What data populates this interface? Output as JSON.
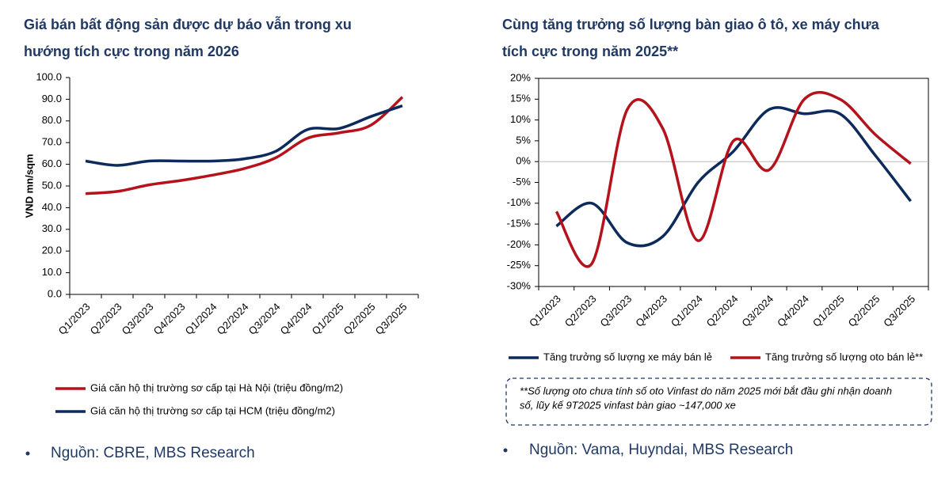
{
  "chart_data": [
    {
      "type": "line",
      "title": [
        "Giá bán bất động sản được dự báo vẫn trong xu",
        "hướng tích cực trong năm 2026"
      ],
      "y_label": "VND mn/sqm",
      "categories": [
        "Q1/2023",
        "Q2/2023",
        "Q3/2023",
        "Q4/2023",
        "Q1/2024",
        "Q2/2024",
        "Q3/2024",
        "Q4/2024",
        "Q1/2025",
        "Q2/2025",
        "Q3/2025"
      ],
      "series": [
        {
          "name": "Giá căn hộ thị trường sơ cấp tại Hà Nội (triệu đồng/m2)",
          "color": "#b5121b",
          "values": [
            46.5,
            47.5,
            50.5,
            52.5,
            55,
            58,
            63,
            72,
            74.5,
            78,
            91
          ]
        },
        {
          "name": "Giá căn hộ thị trường sơ cấp tại HCM (triệu đồng/m2)",
          "color": "#0d2a5c",
          "values": [
            61.5,
            59.5,
            61.5,
            61.5,
            61.5,
            62.5,
            66,
            76,
            76.5,
            82,
            87
          ]
        }
      ],
      "ylim": [
        0,
        100
      ],
      "yticks": [
        {
          "value": 0,
          "label": "0.0"
        },
        {
          "value": 10,
          "label": "10.0"
        },
        {
          "value": 20,
          "label": "20.0"
        },
        {
          "value": 30,
          "label": "30.0"
        },
        {
          "value": 40,
          "label": "40.0"
        },
        {
          "value": 50,
          "label": "50.0"
        },
        {
          "value": 60,
          "label": "60.0"
        },
        {
          "value": 70,
          "label": "70.0"
        },
        {
          "value": 80,
          "label": "80.0"
        },
        {
          "value": 90,
          "label": "90.0"
        },
        {
          "value": 100,
          "label": "100.0"
        }
      ],
      "frame": false,
      "zero_line": false,
      "source": "Nguồn: CBRE, MBS Research"
    },
    {
      "type": "line",
      "title": [
        "Cùng tăng trưởng số lượng bàn giao ô tô, xe máy chưa",
        "tích cực trong năm 2025**"
      ],
      "categories": [
        "Q1/2023",
        "Q2/2023",
        "Q3/2023",
        "Q4/2023",
        "Q1/2024",
        "Q2/2024",
        "Q3/2024",
        "Q4/2024",
        "Q1/2025",
        "Q2/2025",
        "Q3/2025"
      ],
      "series": [
        {
          "name": "Tăng trưởng số lượng xe máy bán lẻ",
          "color": "#0d2a5c",
          "values": [
            -15.5,
            -10,
            -19.5,
            -18,
            -5,
            2.5,
            12.5,
            11.5,
            11.5,
            1.5,
            -9.5
          ]
        },
        {
          "name": "Tăng trưởng số lượng oto bán lẻ**",
          "color": "#b5121b",
          "values": [
            -12,
            -24.5,
            12.5,
            8,
            -19,
            5,
            -2,
            15,
            15,
            6.5,
            -0.5
          ]
        }
      ],
      "ylim": [
        -30,
        20
      ],
      "yticks": [
        {
          "value": -30,
          "label": "-30%"
        },
        {
          "value": -25,
          "label": "-25%"
        },
        {
          "value": -20,
          "label": "-20%"
        },
        {
          "value": -15,
          "label": "-15%"
        },
        {
          "value": -10,
          "label": "-10%"
        },
        {
          "value": -5,
          "label": "-5%"
        },
        {
          "value": 0,
          "label": "0%"
        },
        {
          "value": 5,
          "label": "5%"
        },
        {
          "value": 10,
          "label": "10%"
        },
        {
          "value": 15,
          "label": "15%"
        },
        {
          "value": 20,
          "label": "20%"
        }
      ],
      "frame": true,
      "zero_line": true,
      "note": [
        "**Số lượng oto chưa tính số oto Vinfast do năm 2025 mới bắt đầu ghi nhận doanh",
        "số, lũy kế 9T2025  vinfast bàn giao ~147,000 xe"
      ],
      "source": "Nguồn: Vama, Huyndai, MBS Research"
    }
  ]
}
